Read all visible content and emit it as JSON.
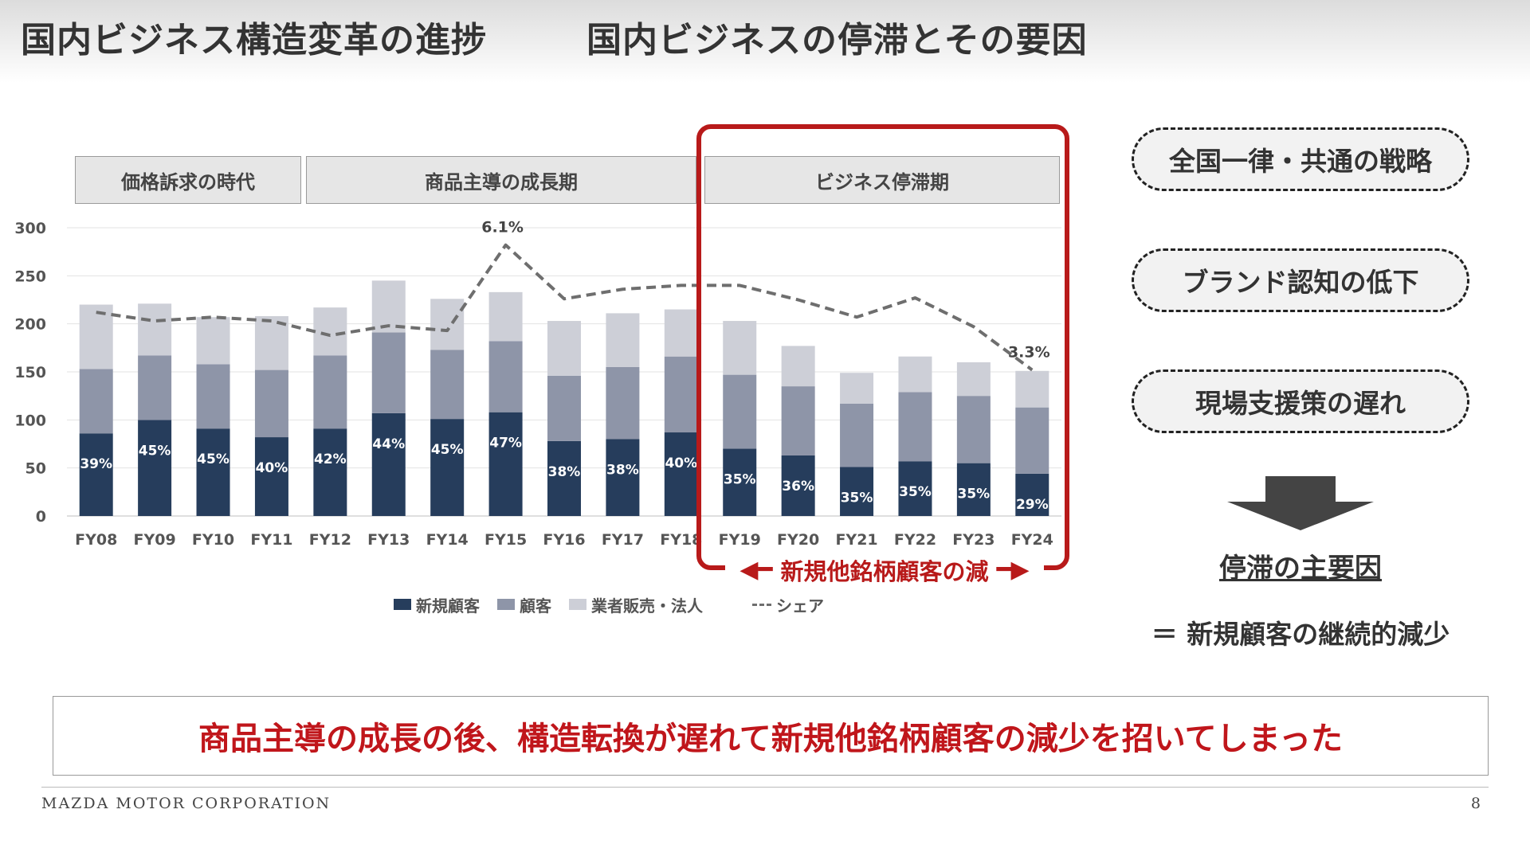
{
  "header": {
    "title_left": "国内ビジネス構造変革の進捗",
    "title_right": "国内ビジネスの停滞とその要因"
  },
  "eras": [
    {
      "label": "価格訴求の時代"
    },
    {
      "label": "商品主導の成長期"
    },
    {
      "label": "ビジネス停滞期"
    }
  ],
  "chart_data": {
    "type": "bar",
    "stacked": true,
    "categories": [
      "FY08",
      "FY09",
      "FY10",
      "FY11",
      "FY12",
      "FY13",
      "FY14",
      "FY15",
      "FY16",
      "FY17",
      "FY18",
      "FY19",
      "FY20",
      "FY21",
      "FY22",
      "FY23",
      "FY24"
    ],
    "series": [
      {
        "name": "新規顧客",
        "color": "#263d5c",
        "values": [
          86,
          100,
          91,
          82,
          91,
          107,
          101,
          108,
          78,
          80,
          87,
          70,
          63,
          51,
          57,
          55,
          44
        ]
      },
      {
        "name": "顧客",
        "color": "#8e95a8",
        "values": [
          67,
          67,
          67,
          70,
          76,
          84,
          72,
          74,
          68,
          75,
          79,
          77,
          72,
          66,
          72,
          70,
          69
        ]
      },
      {
        "name": "業者販売・法人",
        "color": "#cdcfd7",
        "values": [
          67,
          54,
          49,
          56,
          50,
          54,
          53,
          51,
          57,
          56,
          49,
          56,
          42,
          32,
          37,
          35,
          38
        ]
      }
    ],
    "new_share_labels": [
      "39%",
      "45%",
      "45%",
      "40%",
      "42%",
      "44%",
      "45%",
      "47%",
      "38%",
      "38%",
      "40%",
      "35%",
      "36%",
      "35%",
      "35%",
      "35%",
      "29%"
    ],
    "share_line": {
      "name": "シェア",
      "color": "#6e6e6e",
      "values": [
        212,
        203,
        207,
        203,
        188,
        198,
        193,
        282,
        226,
        236,
        240,
        240,
        225,
        207,
        227,
        197,
        152
      ],
      "annotations": [
        {
          "index": 7,
          "text": "6.1%"
        },
        {
          "index": 16,
          "text": "3.3%"
        }
      ]
    },
    "ylim": [
      0,
      300
    ],
    "yticks": [
      0,
      50,
      100,
      150,
      200,
      250,
      300
    ],
    "grid": true,
    "legend_position": "bottom"
  },
  "stagnation_label": "新規他銘柄顧客の減",
  "factors": [
    {
      "label": "全国一律・共通の戦略"
    },
    {
      "label": "ブランド認知の低下"
    },
    {
      "label": "現場支援策の遅れ"
    }
  ],
  "cause": {
    "title": "停滞の主要因",
    "text": "＝ 新規顧客の継続的減少"
  },
  "conclusion": "商品主導の成長の後、構造転換が遅れて新規他銘柄顧客の減少を招いてしまった",
  "footer": {
    "company": "MAZDA MOTOR CORPORATION",
    "page": "8"
  },
  "colors": {
    "accent_red": "#b81a1a",
    "dark_navy": "#263d5c"
  }
}
